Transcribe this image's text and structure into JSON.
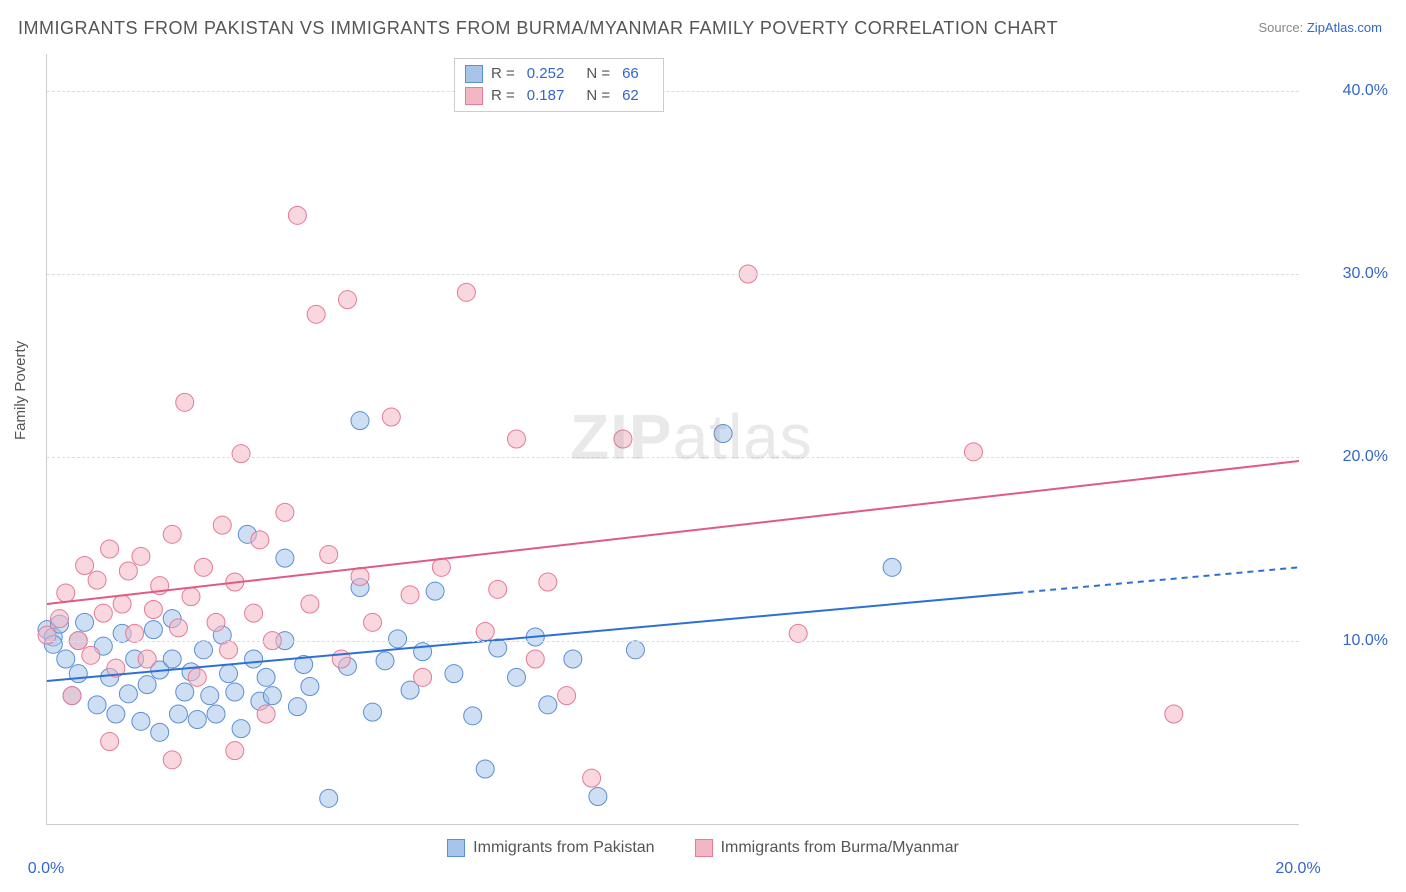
{
  "title": "IMMIGRANTS FROM PAKISTAN VS IMMIGRANTS FROM BURMA/MYANMAR FAMILY POVERTY CORRELATION CHART",
  "source_prefix": "Source: ",
  "source_link": "ZipAtlas.com",
  "watermark_a": "ZIP",
  "watermark_b": "atlas",
  "y_axis_label": "Family Poverty",
  "chart": {
    "type": "scatter",
    "xlim": [
      0,
      20
    ],
    "ylim": [
      0,
      42
    ],
    "y_ticks": [
      10,
      20,
      30,
      40
    ],
    "y_tick_labels": [
      "10.0%",
      "20.0%",
      "30.0%",
      "40.0%"
    ],
    "x_ticks": [
      0,
      20
    ],
    "x_tick_labels": [
      "0.0%",
      "20.0%"
    ],
    "background_color": "#ffffff",
    "grid_color": "#dddddd",
    "marker_radius": 9,
    "marker_opacity": 0.55,
    "line_width": 2
  },
  "series": [
    {
      "key": "pakistan",
      "label": "Immigrants from Pakistan",
      "fill": "#a7c4ea",
      "stroke": "#5b8fd6",
      "line_color": "#2e6fd6",
      "r_value": "0.252",
      "n_value": "66",
      "trend": {
        "x1": 0,
        "y1": 7.8,
        "x2": 20,
        "y2": 14.0,
        "dash_after_x": 15.5
      },
      "points": [
        [
          0.0,
          10.6
        ],
        [
          0.1,
          10.2
        ],
        [
          0.1,
          9.8
        ],
        [
          0.2,
          10.9
        ],
        [
          0.3,
          9.0
        ],
        [
          0.4,
          7.0
        ],
        [
          0.5,
          8.2
        ],
        [
          0.6,
          11.0
        ],
        [
          0.8,
          6.5
        ],
        [
          0.9,
          9.7
        ],
        [
          1.0,
          8.0
        ],
        [
          1.1,
          6.0
        ],
        [
          1.2,
          10.4
        ],
        [
          1.3,
          7.1
        ],
        [
          1.4,
          9.0
        ],
        [
          1.5,
          5.6
        ],
        [
          1.6,
          7.6
        ],
        [
          1.7,
          10.6
        ],
        [
          1.8,
          8.4
        ],
        [
          1.8,
          5.0
        ],
        [
          2.0,
          9.0
        ],
        [
          2.1,
          6.0
        ],
        [
          2.2,
          7.2
        ],
        [
          2.3,
          8.3
        ],
        [
          2.4,
          5.7
        ],
        [
          2.5,
          9.5
        ],
        [
          2.6,
          7.0
        ],
        [
          2.7,
          6.0
        ],
        [
          2.8,
          10.3
        ],
        [
          2.9,
          8.2
        ],
        [
          3.0,
          7.2
        ],
        [
          3.1,
          5.2
        ],
        [
          3.2,
          15.8
        ],
        [
          3.3,
          9.0
        ],
        [
          3.4,
          6.7
        ],
        [
          3.5,
          8.0
        ],
        [
          3.6,
          7.0
        ],
        [
          3.8,
          10.0
        ],
        [
          4.0,
          6.4
        ],
        [
          4.1,
          8.7
        ],
        [
          4.2,
          7.5
        ],
        [
          4.5,
          1.4
        ],
        [
          4.8,
          8.6
        ],
        [
          5.0,
          12.9
        ],
        [
          5.2,
          6.1
        ],
        [
          5.4,
          8.9
        ],
        [
          5.6,
          10.1
        ],
        [
          5.8,
          7.3
        ],
        [
          6.0,
          9.4
        ],
        [
          6.2,
          12.7
        ],
        [
          6.5,
          8.2
        ],
        [
          6.8,
          5.9
        ],
        [
          7.0,
          3.0
        ],
        [
          7.2,
          9.6
        ],
        [
          7.5,
          8.0
        ],
        [
          7.8,
          10.2
        ],
        [
          8.0,
          6.5
        ],
        [
          8.4,
          9.0
        ],
        [
          8.8,
          1.5
        ],
        [
          9.4,
          9.5
        ],
        [
          10.8,
          21.3
        ],
        [
          13.5,
          14.0
        ],
        [
          5.0,
          22.0
        ],
        [
          3.8,
          14.5
        ],
        [
          2.0,
          11.2
        ],
        [
          0.5,
          10.0
        ]
      ]
    },
    {
      "key": "burma",
      "label": "Immigrants from Burma/Myanmar",
      "fill": "#f3b6c4",
      "stroke": "#e77a96",
      "line_color": "#e05a82",
      "r_value": "0.187",
      "n_value": "62",
      "trend": {
        "x1": 0,
        "y1": 12.0,
        "x2": 20,
        "y2": 19.8,
        "dash_after_x": 20
      },
      "points": [
        [
          0.0,
          10.3
        ],
        [
          0.2,
          11.2
        ],
        [
          0.3,
          12.6
        ],
        [
          0.5,
          10.0
        ],
        [
          0.6,
          14.1
        ],
        [
          0.7,
          9.2
        ],
        [
          0.8,
          13.3
        ],
        [
          0.9,
          11.5
        ],
        [
          1.0,
          15.0
        ],
        [
          1.1,
          8.5
        ],
        [
          1.2,
          12.0
        ],
        [
          1.3,
          13.8
        ],
        [
          1.4,
          10.4
        ],
        [
          1.5,
          14.6
        ],
        [
          1.6,
          9.0
        ],
        [
          1.7,
          11.7
        ],
        [
          1.8,
          13.0
        ],
        [
          2.0,
          15.8
        ],
        [
          2.1,
          10.7
        ],
        [
          2.2,
          23.0
        ],
        [
          2.3,
          12.4
        ],
        [
          2.4,
          8.0
        ],
        [
          2.5,
          14.0
        ],
        [
          2.7,
          11.0
        ],
        [
          2.8,
          16.3
        ],
        [
          2.9,
          9.5
        ],
        [
          3.0,
          13.2
        ],
        [
          3.1,
          20.2
        ],
        [
          3.3,
          11.5
        ],
        [
          3.4,
          15.5
        ],
        [
          3.6,
          10.0
        ],
        [
          3.8,
          17.0
        ],
        [
          4.0,
          33.2
        ],
        [
          4.2,
          12.0
        ],
        [
          4.3,
          27.8
        ],
        [
          4.5,
          14.7
        ],
        [
          4.7,
          9.0
        ],
        [
          4.8,
          28.6
        ],
        [
          5.0,
          13.5
        ],
        [
          5.2,
          11.0
        ],
        [
          5.5,
          22.2
        ],
        [
          5.8,
          12.5
        ],
        [
          6.0,
          8.0
        ],
        [
          6.3,
          14.0
        ],
        [
          6.7,
          29.0
        ],
        [
          7.0,
          10.5
        ],
        [
          7.2,
          12.8
        ],
        [
          7.5,
          21.0
        ],
        [
          7.8,
          9.0
        ],
        [
          8.0,
          13.2
        ],
        [
          8.3,
          7.0
        ],
        [
          8.7,
          2.5
        ],
        [
          9.2,
          21.0
        ],
        [
          11.2,
          30.0
        ],
        [
          12.0,
          10.4
        ],
        [
          14.8,
          20.3
        ],
        [
          18.0,
          6.0
        ],
        [
          3.0,
          4.0
        ],
        [
          1.0,
          4.5
        ],
        [
          0.4,
          7.0
        ],
        [
          2.0,
          3.5
        ],
        [
          3.5,
          6.0
        ]
      ]
    }
  ],
  "legend_top": {
    "r_label": "R =",
    "n_label": "N ="
  }
}
